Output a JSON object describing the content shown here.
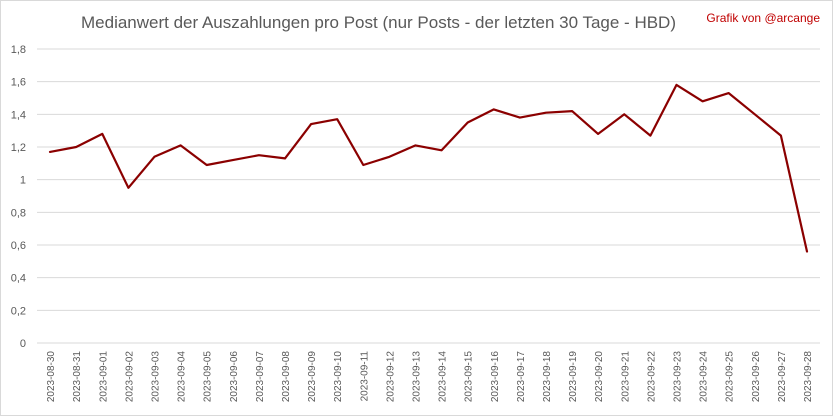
{
  "chart_data": {
    "type": "line",
    "title": "Medianwert der Auszahlungen pro Post (nur Posts - der letzten 30 Tage - HBD)",
    "credit": "Grafik von @arcange",
    "xlabel": "",
    "ylabel": "",
    "ylim": [
      0,
      1.8
    ],
    "y_ticks": [
      "0",
      "0,2",
      "0,4",
      "0,6",
      "0,8",
      "1",
      "1,2",
      "1,4",
      "1,6",
      "1,8"
    ],
    "grid": true,
    "legend": "none",
    "line_color": "#8b0000",
    "categories": [
      "2023-08-30",
      "2023-08-31",
      "2023-09-01",
      "2023-09-02",
      "2023-09-03",
      "2023-09-04",
      "2023-09-05",
      "2023-09-06",
      "2023-09-07",
      "2023-09-08",
      "2023-09-09",
      "2023-09-10",
      "2023-09-11",
      "2023-09-12",
      "2023-09-13",
      "2023-09-14",
      "2023-09-15",
      "2023-09-16",
      "2023-09-17",
      "2023-09-18",
      "2023-09-19",
      "2023-09-20",
      "2023-09-21",
      "2023-09-22",
      "2023-09-23",
      "2023-09-24",
      "2023-09-25",
      "2023-09-26",
      "2023-09-27",
      "2023-09-28"
    ],
    "series": [
      {
        "values": [
          1.17,
          1.2,
          1.28,
          0.95,
          1.14,
          1.21,
          1.09,
          1.12,
          1.15,
          1.13,
          1.34,
          1.37,
          1.09,
          1.14,
          1.21,
          1.18,
          1.35,
          1.43,
          1.38,
          1.41,
          1.42,
          1.28,
          1.4,
          1.27,
          1.58,
          1.48,
          1.53,
          1.4,
          1.27,
          0.56
        ]
      }
    ]
  }
}
